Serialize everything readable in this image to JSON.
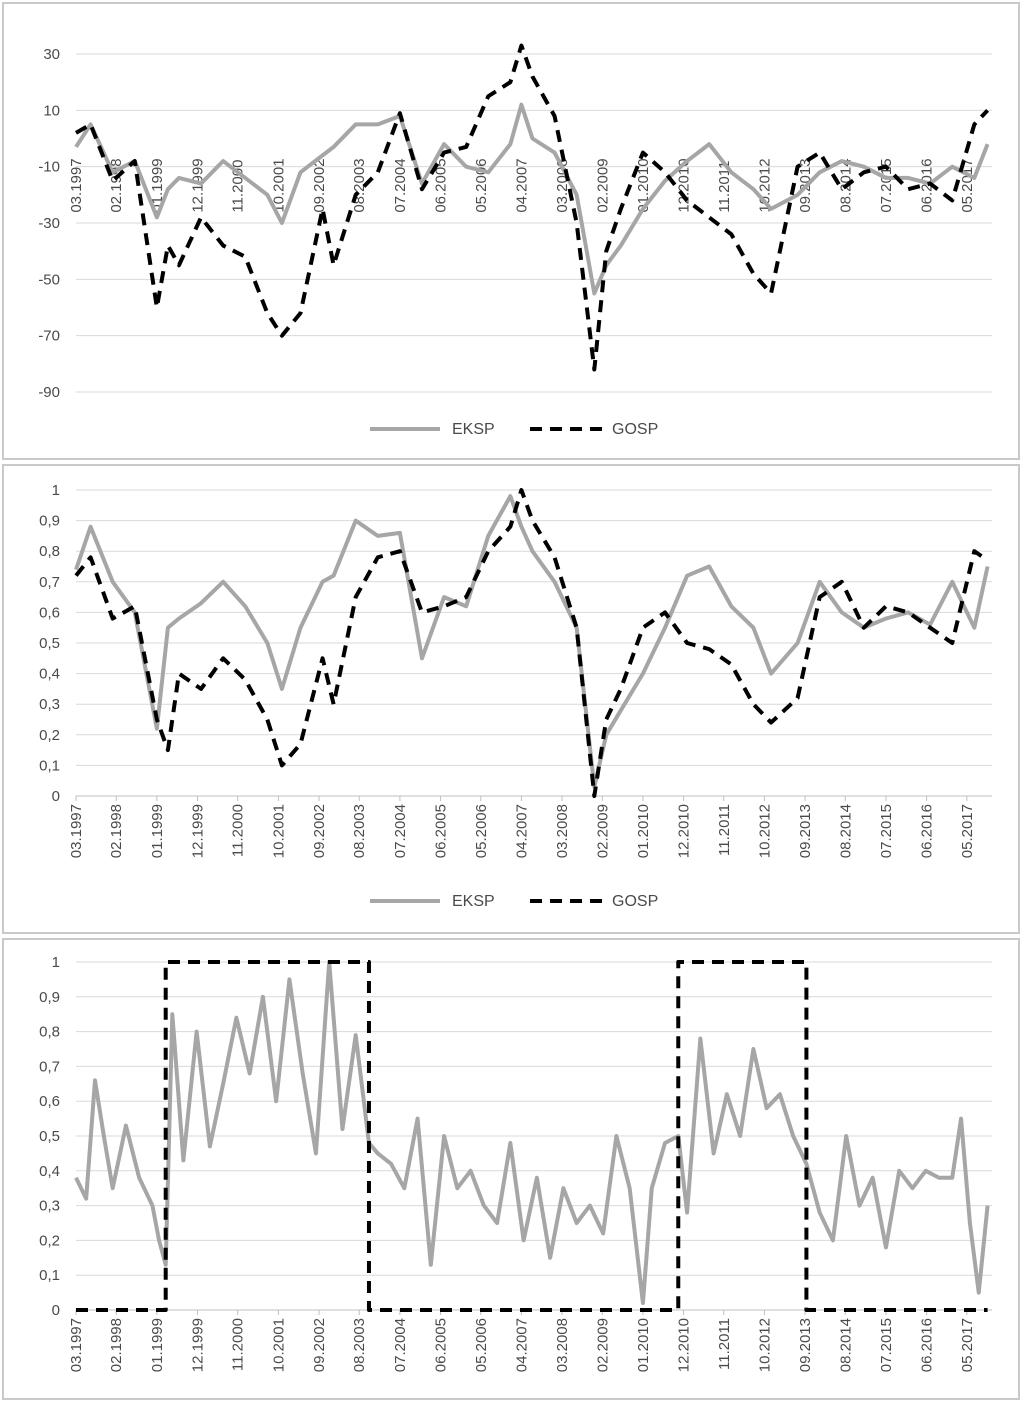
{
  "colors": {
    "eksp": "#a6a6a6",
    "gosp": "#000000",
    "grid": "#d9d9d9",
    "text": "#4a4a4a"
  },
  "x_tick_labels": [
    "03.1997",
    "02.1998",
    "01.1999",
    "12.1999",
    "11.2000",
    "10.2001",
    "09.2002",
    "08.2003",
    "07.2004",
    "06.2005",
    "05.2006",
    "04.2007",
    "03.2008",
    "02.2009",
    "01.2010",
    "12.2010",
    "11.2011",
    "10.2012",
    "09.2013",
    "08.2014",
    "07.2015",
    "06.2016",
    "05.2017"
  ],
  "legend": {
    "eksp": "EKSP",
    "gosp": "GOSP"
  },
  "chart_data": [
    {
      "type": "line",
      "title": "",
      "xlabel": "",
      "ylabel": "",
      "ylim": [
        -90,
        30
      ],
      "y_ticks": [
        "30",
        "10",
        "-10",
        "-30",
        "-50",
        "-70",
        "-90"
      ],
      "x": [
        1997.17,
        1997.5,
        1998.0,
        1998.5,
        1999.0,
        1999.25,
        1999.5,
        2000.0,
        2000.5,
        2001.0,
        2001.5,
        2001.83,
        2002.25,
        2002.75,
        2003.0,
        2003.5,
        2004.0,
        2004.5,
        2005.0,
        2005.5,
        2006.0,
        2006.5,
        2007.0,
        2007.25,
        2007.5,
        2008.0,
        2008.5,
        2008.9,
        2009.17,
        2009.5,
        2010.0,
        2010.5,
        2011.0,
        2011.5,
        2012.0,
        2012.5,
        2012.9,
        2013.5,
        2014.0,
        2014.5,
        2015.0,
        2015.5,
        2016.0,
        2016.5,
        2017.0,
        2017.5,
        2017.8
      ],
      "series": [
        {
          "name": "EKSP",
          "values": [
            -3,
            5,
            -12,
            -8,
            -28,
            -18,
            -14,
            -16,
            -8,
            -14,
            -20,
            -30,
            -12,
            -6,
            -3,
            5,
            5,
            8,
            -16,
            -2,
            -10,
            -12,
            -2,
            12,
            0,
            -5,
            -20,
            -55,
            -45,
            -38,
            -25,
            -15,
            -8,
            -2,
            -12,
            -18,
            -25,
            -20,
            -12,
            -8,
            -10,
            -14,
            -14,
            -16,
            -10,
            -14,
            -2
          ]
        },
        {
          "name": "GOSP",
          "values": [
            2,
            5,
            -15,
            -8,
            -60,
            -38,
            -45,
            -28,
            -38,
            -42,
            -62,
            -70,
            -62,
            -25,
            -45,
            -20,
            -12,
            9,
            -18,
            -5,
            -3,
            15,
            20,
            33,
            22,
            8,
            -30,
            -82,
            -40,
            -25,
            -5,
            -12,
            -22,
            -28,
            -34,
            -48,
            -55,
            -10,
            -5,
            -18,
            -12,
            -10,
            -18,
            -16,
            -22,
            5,
            10
          ]
        }
      ]
    },
    {
      "type": "line",
      "title": "",
      "xlabel": "",
      "ylabel": "",
      "ylim": [
        0,
        1
      ],
      "y_ticks": [
        "1",
        "0,9",
        "0,8",
        "0,7",
        "0,6",
        "0,5",
        "0,4",
        "0,3",
        "0,2",
        "0,1",
        "0"
      ],
      "x": [
        1997.17,
        1997.5,
        1998.0,
        1998.5,
        1999.0,
        1999.25,
        1999.5,
        2000.0,
        2000.5,
        2001.0,
        2001.5,
        2001.83,
        2002.25,
        2002.75,
        2003.0,
        2003.5,
        2004.0,
        2004.5,
        2005.0,
        2005.5,
        2006.0,
        2006.5,
        2007.0,
        2007.25,
        2007.5,
        2008.0,
        2008.5,
        2008.9,
        2009.17,
        2009.5,
        2010.0,
        2010.5,
        2011.0,
        2011.5,
        2012.0,
        2012.5,
        2012.9,
        2013.5,
        2014.0,
        2014.5,
        2015.0,
        2015.5,
        2016.0,
        2016.5,
        2017.0,
        2017.5,
        2017.8
      ],
      "series": [
        {
          "name": "EKSP",
          "values": [
            0.74,
            0.88,
            0.7,
            0.6,
            0.22,
            0.55,
            0.58,
            0.63,
            0.7,
            0.62,
            0.5,
            0.35,
            0.55,
            0.7,
            0.72,
            0.9,
            0.85,
            0.86,
            0.45,
            0.65,
            0.62,
            0.85,
            0.98,
            0.88,
            0.8,
            0.7,
            0.55,
            0.03,
            0.2,
            0.28,
            0.4,
            0.55,
            0.72,
            0.75,
            0.62,
            0.55,
            0.4,
            0.5,
            0.7,
            0.6,
            0.55,
            0.58,
            0.6,
            0.56,
            0.7,
            0.55,
            0.75
          ]
        },
        {
          "name": "GOSP",
          "values": [
            0.72,
            0.78,
            0.58,
            0.62,
            0.25,
            0.15,
            0.4,
            0.35,
            0.45,
            0.38,
            0.25,
            0.1,
            0.17,
            0.45,
            0.3,
            0.65,
            0.78,
            0.8,
            0.6,
            0.62,
            0.65,
            0.8,
            0.88,
            1.0,
            0.9,
            0.78,
            0.55,
            0.0,
            0.25,
            0.35,
            0.55,
            0.6,
            0.5,
            0.48,
            0.43,
            0.3,
            0.24,
            0.32,
            0.65,
            0.7,
            0.55,
            0.62,
            0.6,
            0.55,
            0.5,
            0.8,
            0.77
          ]
        }
      ]
    },
    {
      "type": "line",
      "title": "",
      "xlabel": "",
      "ylabel": "",
      "ylim": [
        0,
        1
      ],
      "y_ticks": [
        "1",
        "0,9",
        "0,8",
        "0,7",
        "0,6",
        "0,5",
        "0,4",
        "0,3",
        "0,2",
        "0,1",
        "0"
      ],
      "x": [
        1997.17,
        1997.4,
        1997.6,
        1997.8,
        1998.0,
        1998.3,
        1998.6,
        1998.9,
        1999.05,
        1999.2,
        1999.35,
        1999.6,
        1999.9,
        2000.2,
        2000.5,
        2000.8,
        2001.1,
        2001.4,
        2001.7,
        2002.0,
        2002.3,
        2002.6,
        2002.9,
        2003.2,
        2003.5,
        2003.8,
        2004.0,
        2004.3,
        2004.6,
        2004.9,
        2005.2,
        2005.5,
        2005.8,
        2006.1,
        2006.4,
        2006.7,
        2007.0,
        2007.3,
        2007.6,
        2007.9,
        2008.2,
        2008.5,
        2008.8,
        2009.1,
        2009.4,
        2009.7,
        2010.0,
        2010.2,
        2010.5,
        2010.8,
        2011.0,
        2011.3,
        2011.6,
        2011.9,
        2012.2,
        2012.5,
        2012.8,
        2013.1,
        2013.4,
        2013.7,
        2014.0,
        2014.3,
        2014.6,
        2014.9,
        2015.2,
        2015.5,
        2015.8,
        2016.1,
        2016.4,
        2016.7,
        2017.0,
        2017.2,
        2017.4,
        2017.6,
        2017.8
      ],
      "series": [
        {
          "name": "EKSP",
          "values": [
            0.38,
            0.32,
            0.66,
            0.5,
            0.35,
            0.53,
            0.38,
            0.3,
            0.2,
            0.13,
            0.85,
            0.43,
            0.8,
            0.47,
            0.65,
            0.84,
            0.68,
            0.9,
            0.6,
            0.95,
            0.68,
            0.45,
            1.0,
            0.52,
            0.79,
            0.48,
            0.45,
            0.42,
            0.35,
            0.55,
            0.13,
            0.5,
            0.35,
            0.4,
            0.3,
            0.25,
            0.48,
            0.2,
            0.38,
            0.15,
            0.35,
            0.25,
            0.3,
            0.22,
            0.5,
            0.35,
            0.02,
            0.35,
            0.48,
            0.5,
            0.28,
            0.78,
            0.45,
            0.62,
            0.5,
            0.75,
            0.58,
            0.62,
            0.5,
            0.42,
            0.28,
            0.2,
            0.5,
            0.3,
            0.38,
            0.18,
            0.4,
            0.35,
            0.4,
            0.38,
            0.38,
            0.55,
            0.25,
            0.05,
            0.3
          ]
        },
        {
          "name": "GOSP",
          "values": [
            0,
            0,
            0,
            0,
            0,
            0,
            0,
            0,
            0,
            1,
            1,
            1,
            1,
            1,
            1,
            1,
            1,
            1,
            1,
            1,
            1,
            1,
            1,
            1,
            1,
            0,
            0,
            0,
            0,
            0,
            0,
            0,
            0,
            0,
            0,
            0,
            0,
            0,
            0,
            0,
            0,
            0,
            0,
            0,
            0,
            0,
            0,
            0,
            0,
            1,
            1,
            1,
            1,
            1,
            1,
            1,
            1,
            1,
            1,
            0,
            0,
            0,
            0,
            0,
            0,
            0,
            0,
            0,
            0,
            0,
            0,
            0,
            0,
            0,
            0
          ]
        }
      ]
    }
  ]
}
